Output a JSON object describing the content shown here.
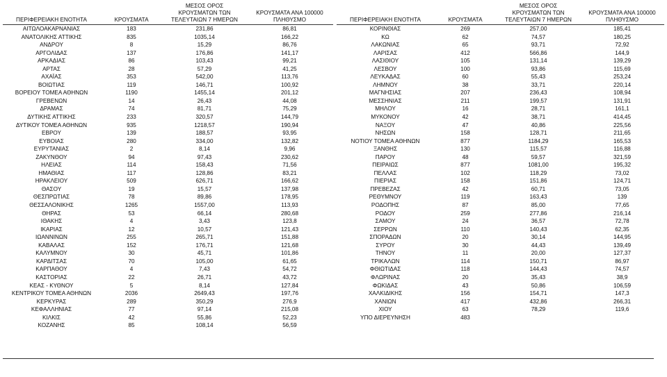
{
  "headers": {
    "region": "ΠΕΡΙΦΕΡΕΙΑΚΗ ΕΝΟΤΗΤΑ",
    "cases": "ΚΡΟΥΣΜΑΤΑ",
    "avg7": [
      "ΜΕΣΟΣ ΟΡΟΣ",
      "ΚΡΟΥΣΜΑΤΩΝ ΤΩΝ",
      "ΤΕΛΕΥΤΑΙΩΝ 7 ΗΜΕΡΩΝ"
    ],
    "per100k": [
      "ΚΡΟΥΣΜΑΤΑ ΑΝΑ 100000",
      "ΠΛΗΘΥΣΜΟ"
    ]
  },
  "left_rows": [
    [
      "ΑΙΤΩΛΟΑΚΑΡΝΑΝΙΑΣ",
      "183",
      "231,86",
      "86,81"
    ],
    [
      "ΑΝΑΤΟΛΙΚΗΣ ΑΤΤΙΚΗΣ",
      "835",
      "1035,14",
      "166,22"
    ],
    [
      "ΑΝΔΡΟΥ",
      "8",
      "15,29",
      "86,76"
    ],
    [
      "ΑΡΓΟΛΙΔΑΣ",
      "137",
      "176,86",
      "141,17"
    ],
    [
      "ΑΡΚΑΔΙΑΣ",
      "86",
      "103,43",
      "99,21"
    ],
    [
      "ΑΡΤΑΣ",
      "28",
      "57,29",
      "41,25"
    ],
    [
      "ΑΧΑΪΑΣ",
      "353",
      "542,00",
      "113,76"
    ],
    [
      "ΒΟΙΩΤΙΑΣ",
      "119",
      "146,71",
      "100,92"
    ],
    [
      "ΒΟΡΕΙΟΥ ΤΟΜΕΑ ΑΘΗΝΩΝ",
      "1190",
      "1455,14",
      "201,12"
    ],
    [
      "ΓΡΕΒΕΝΩΝ",
      "14",
      "26,43",
      "44,08"
    ],
    [
      "ΔΡΑΜΑΣ",
      "74",
      "81,71",
      "75,29"
    ],
    [
      "ΔΥΤΙΚΗΣ ΑΤΤΙΚΗΣ",
      "233",
      "320,57",
      "144,79"
    ],
    [
      "ΔΥΤΙΚΟΥ ΤΟΜΕΑ ΑΘΗΝΩΝ",
      "935",
      "1218,57",
      "190,94"
    ],
    [
      "ΕΒΡΟΥ",
      "139",
      "188,57",
      "93,95"
    ],
    [
      "ΕΥΒΟΙΑΣ",
      "280",
      "334,00",
      "132,82"
    ],
    [
      "ΕΥΡΥΤΑΝΙΑΣ",
      "2",
      "8,14",
      "9,96"
    ],
    [
      "ΖΑΚΥΝΘΟΥ",
      "94",
      "97,43",
      "230,62"
    ],
    [
      "ΗΛΕΙΑΣ",
      "114",
      "158,43",
      "71,56"
    ],
    [
      "ΗΜΑΘΙΑΣ",
      "117",
      "128,86",
      "83,21"
    ],
    [
      "ΗΡΑΚΛΕΙΟΥ",
      "509",
      "626,71",
      "166,62"
    ],
    [
      "ΘΑΣΟΥ",
      "19",
      "15,57",
      "137,98"
    ],
    [
      "ΘΕΣΠΡΩΤΙΑΣ",
      "78",
      "89,86",
      "178,95"
    ],
    [
      "ΘΕΣΣΑΛΟΝΙΚΗΣ",
      "1265",
      "1557,00",
      "113,93"
    ],
    [
      "ΘΗΡΑΣ",
      "53",
      "66,14",
      "280,68"
    ],
    [
      "ΙΘΑΚΗΣ",
      "4",
      "3,43",
      "123,8"
    ],
    [
      "ΙΚΑΡΙΑΣ",
      "12",
      "10,57",
      "121,43"
    ],
    [
      "ΙΩΑΝΝΙΝΩΝ",
      "255",
      "265,71",
      "151,88"
    ],
    [
      "ΚΑΒΑΛΑΣ",
      "152",
      "176,71",
      "121,68"
    ],
    [
      "ΚΑΛΥΜΝΟΥ",
      "30",
      "45,71",
      "101,86"
    ],
    [
      "ΚΑΡΔΙΤΣΑΣ",
      "70",
      "105,00",
      "61,65"
    ],
    [
      "ΚΑΡΠΑΘΟΥ",
      "4",
      "7,43",
      "54,72"
    ],
    [
      "ΚΑΣΤΟΡΙΑΣ",
      "22",
      "26,71",
      "43,72"
    ],
    [
      "ΚΕΑΣ - ΚΥΘΝΟΥ",
      "5",
      "8,14",
      "127,84"
    ],
    [
      "ΚΕΝΤΡΙΚΟΥ ΤΟΜΕΑ ΑΘΗΝΩΝ",
      "2036",
      "2649,43",
      "197,76"
    ],
    [
      "ΚΕΡΚΥΡΑΣ",
      "289",
      "350,29",
      "276,9"
    ],
    [
      "ΚΕΦΑΛΛΗΝΙΑΣ",
      "77",
      "97,14",
      "215,08"
    ],
    [
      "ΚΙΛΚΙΣ",
      "42",
      "55,86",
      "52,23"
    ],
    [
      "ΚΟΖΑΝΗΣ",
      "85",
      "108,14",
      "56,59"
    ]
  ],
  "right_rows": [
    [
      "ΚΟΡΙΝΘΙΑΣ",
      "269",
      "257,00",
      "185,41"
    ],
    [
      "ΚΩ",
      "62",
      "74,57",
      "180,25"
    ],
    [
      "ΛΑΚΩΝΙΑΣ",
      "65",
      "93,71",
      "72,92"
    ],
    [
      "ΛΑΡΙΣΑΣ",
      "412",
      "566,86",
      "144,9"
    ],
    [
      "ΛΑΣΙΘΙΟΥ",
      "105",
      "131,14",
      "139,29"
    ],
    [
      "ΛΕΣΒΟΥ",
      "100",
      "93,86",
      "115,69"
    ],
    [
      "ΛΕΥΚΑΔΑΣ",
      "60",
      "55,43",
      "253,24"
    ],
    [
      "ΛΗΜΝΟΥ",
      "38",
      "33,71",
      "220,14"
    ],
    [
      "ΜΑΓΝΗΣΙΑΣ",
      "207",
      "236,43",
      "108,94"
    ],
    [
      "ΜΕΣΣΗΝΙΑΣ",
      "211",
      "199,57",
      "131,91"
    ],
    [
      "ΜΗΛΟΥ",
      "16",
      "28,71",
      "161,1"
    ],
    [
      "ΜΥΚΟΝΟΥ",
      "42",
      "38,71",
      "414,45"
    ],
    [
      "ΝΑΞΟΥ",
      "47",
      "40,86",
      "225,56"
    ],
    [
      "ΝΗΣΩΝ",
      "158",
      "128,71",
      "211,65"
    ],
    [
      "ΝΟΤΙΟΥ ΤΟΜΕΑ ΑΘΗΝΩΝ",
      "877",
      "1184,29",
      "165,53"
    ],
    [
      "ΞΑΝΘΗΣ",
      "130",
      "115,57",
      "116,88"
    ],
    [
      "ΠΑΡΟΥ",
      "48",
      "59,57",
      "321,59"
    ],
    [
      "ΠΕΙΡΑΙΩΣ",
      "877",
      "1081,00",
      "195,32"
    ],
    [
      "ΠΕΛΛΑΣ",
      "102",
      "118,29",
      "73,02"
    ],
    [
      "ΠΙΕΡΙΑΣ",
      "158",
      "151,86",
      "124,71"
    ],
    [
      "ΠΡΕΒΕΖΑΣ",
      "42",
      "60,71",
      "73,05"
    ],
    [
      "ΡΕΘΥΜΝΟΥ",
      "119",
      "163,43",
      "139"
    ],
    [
      "ΡΟΔΟΠΗΣ",
      "87",
      "85,00",
      "77,65"
    ],
    [
      "ΡΟΔΟΥ",
      "259",
      "277,86",
      "216,14"
    ],
    [
      "ΣΑΜΟΥ",
      "24",
      "36,57",
      "72,78"
    ],
    [
      "ΣΕΡΡΩΝ",
      "110",
      "140,43",
      "62,35"
    ],
    [
      "ΣΠΟΡΑΔΩΝ",
      "20",
      "30,14",
      "144,95"
    ],
    [
      "ΣΥΡΟΥ",
      "30",
      "44,43",
      "139,49"
    ],
    [
      "ΤΗΝΟΥ",
      "11",
      "20,00",
      "127,37"
    ],
    [
      "ΤΡΙΚΑΛΩΝ",
      "114",
      "150,71",
      "86,97"
    ],
    [
      "ΦΘΙΩΤΙΔΑΣ",
      "118",
      "144,43",
      "74,57"
    ],
    [
      "ΦΛΩΡΙΝΑΣ",
      "20",
      "35,43",
      "38,9"
    ],
    [
      "ΦΩΚΙΔΑΣ",
      "43",
      "50,86",
      "106,59"
    ],
    [
      "ΧΑΛΚΙΔΙΚΗΣ",
      "156",
      "154,71",
      "147,3"
    ],
    [
      "ΧΑΝΙΩΝ",
      "417",
      "432,86",
      "266,31"
    ],
    [
      "ΧΙΟΥ",
      "63",
      "78,29",
      "119,6"
    ],
    [
      "ΥΠΟ ΔΙΕΡΕΥΝΗΣΗ",
      "483",
      "",
      ""
    ]
  ]
}
